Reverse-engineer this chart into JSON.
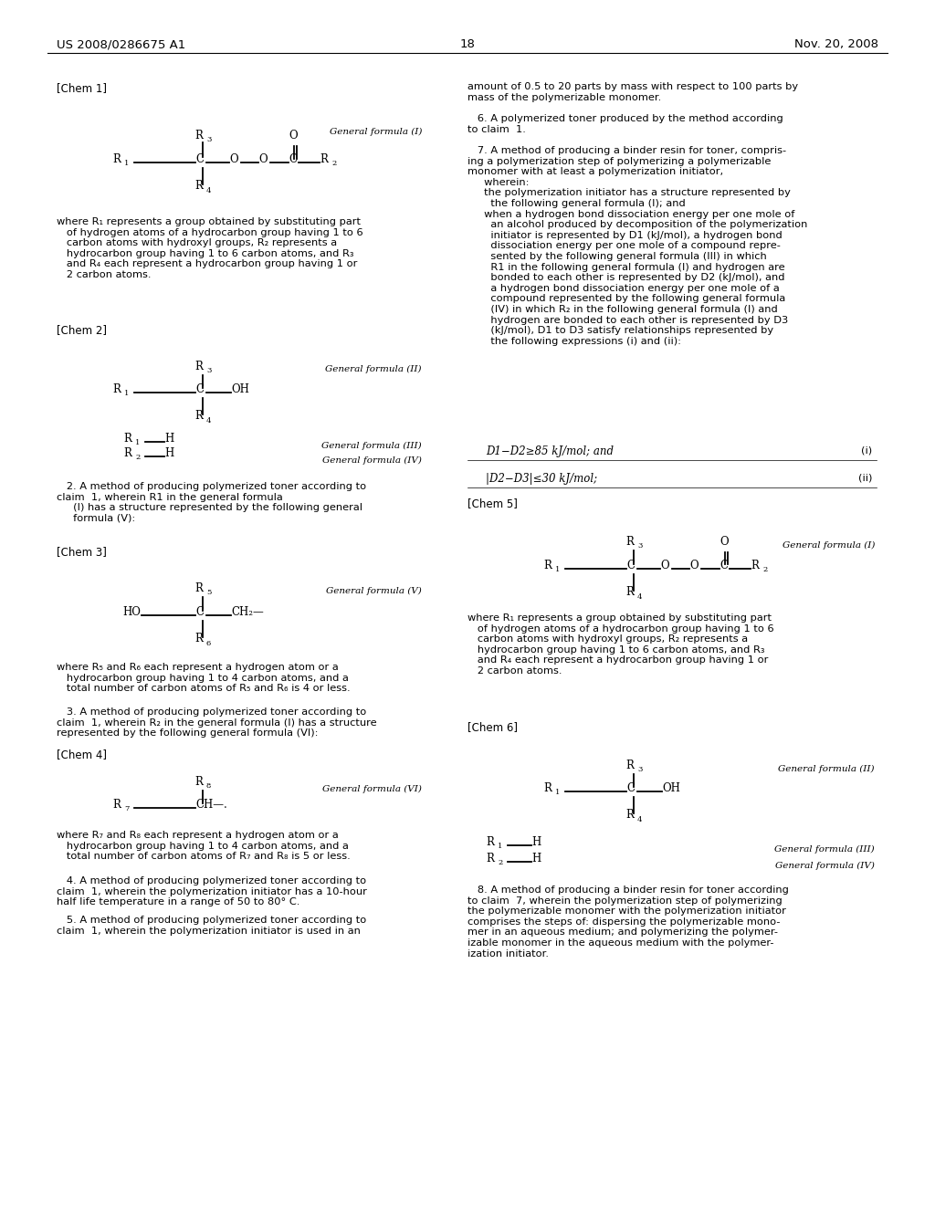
{
  "bg": "#ffffff",
  "header_left": "US 2008/0286675 A1",
  "header_center": "18",
  "header_right": "Nov. 20, 2008"
}
